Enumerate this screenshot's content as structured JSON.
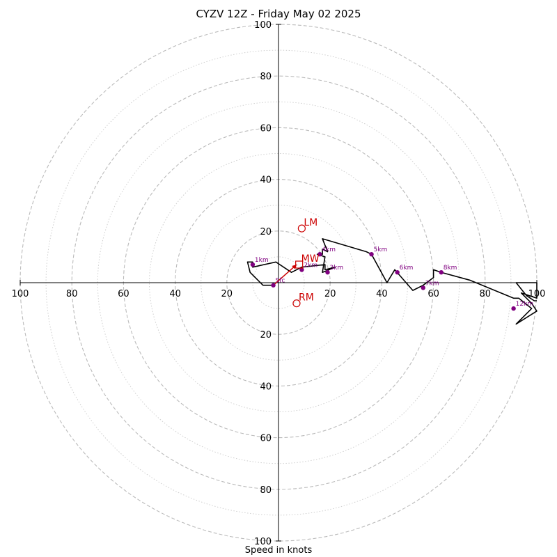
{
  "title": "CYZV 12Z - Friday May 02 2025",
  "chart_data": {
    "type": "hodograph",
    "title": "CYZV 12Z - Friday May 02 2025",
    "xlabel": "Speed in knots",
    "rings_major": [
      20,
      40,
      60,
      80,
      100
    ],
    "rings_minor": [
      10,
      30,
      50,
      70,
      90
    ],
    "tick_labels": [
      "20",
      "40",
      "60",
      "80",
      "100"
    ],
    "xlim": [
      -100,
      100
    ],
    "ylim": [
      -100,
      100
    ],
    "hodograph_uv": [
      [
        -2,
        -1
      ],
      [
        -6,
        -1
      ],
      [
        -11,
        4
      ],
      [
        -12,
        8
      ],
      [
        -10,
        8
      ],
      [
        -10,
        6
      ],
      [
        -1,
        8
      ],
      [
        5,
        4
      ],
      [
        9,
        6
      ],
      [
        18,
        7
      ],
      [
        18,
        5
      ],
      [
        22,
        6
      ],
      [
        17,
        4
      ],
      [
        18,
        10
      ],
      [
        15,
        11
      ],
      [
        17,
        11
      ],
      [
        17,
        13
      ],
      [
        19,
        12
      ],
      [
        17,
        17
      ],
      [
        34,
        12
      ],
      [
        36,
        11
      ],
      [
        42,
        0
      ],
      [
        45,
        5
      ],
      [
        52,
        -3
      ],
      [
        56,
        -1
      ],
      [
        60,
        2
      ],
      [
        60,
        5
      ],
      [
        63,
        4
      ],
      [
        74,
        1
      ],
      [
        91,
        -6
      ],
      [
        93,
        -6
      ],
      [
        98,
        -10
      ],
      [
        92,
        -16
      ],
      [
        100,
        -11
      ],
      [
        98,
        -8
      ],
      [
        94,
        -4
      ],
      [
        100,
        -6
      ],
      [
        100,
        0
      ],
      [
        92,
        0
      ],
      [
        96,
        -5
      ],
      [
        99,
        -7
      ],
      [
        100,
        -7
      ]
    ],
    "height_markers": [
      {
        "label": "Sfc",
        "u": -2,
        "v": -1
      },
      {
        "label": "1km",
        "u": -10,
        "v": 7
      },
      {
        "label": "2km",
        "u": 9,
        "v": 5
      },
      {
        "label": "3km",
        "u": 19,
        "v": 4
      },
      {
        "label": "4km",
        "u": 16,
        "v": 11
      },
      {
        "label": "5km",
        "u": 36,
        "v": 11
      },
      {
        "label": "6km",
        "u": 46,
        "v": 4
      },
      {
        "label": "7km",
        "u": 56,
        "v": -2
      },
      {
        "label": "8km",
        "u": 63,
        "v": 4
      },
      {
        "label": "12km",
        "u": 91,
        "v": -10
      }
    ],
    "motion_markers": [
      {
        "label": "LM",
        "u": 9,
        "v": 21,
        "shape": "circle"
      },
      {
        "label": "MW",
        "u": 8,
        "v": 7,
        "shape": "square"
      },
      {
        "label": "RM",
        "u": 7,
        "v": -8,
        "shape": "circle"
      }
    ],
    "storm_motion_arrow": {
      "from": [
        -2,
        -1
      ],
      "to": [
        7,
        7
      ]
    },
    "colors": {
      "ring": "#bbbbbb",
      "axis": "#000000",
      "trace": "#000000",
      "height": "#800080",
      "motion": "#cc0000"
    }
  }
}
